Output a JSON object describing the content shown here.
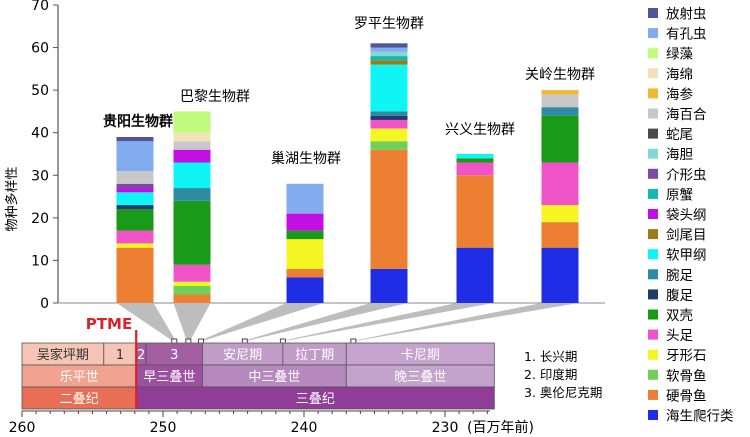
{
  "chart_data": {
    "type": "bar",
    "stacked": true,
    "ylabel": "物种多样性",
    "ylim": [
      0,
      70
    ],
    "yticks": [
      0,
      10,
      20,
      30,
      40,
      50,
      60,
      70
    ],
    "grid": false,
    "legend_position": "right",
    "categories": [
      "贵阳生物群",
      "巴黎生物群",
      "巢湖生物群",
      "罗平生物群",
      "兴义生物群",
      "关岭生物群"
    ],
    "category_ages_ma": [
      249.2,
      248.2,
      247.3,
      244.2,
      241.5,
      236.5
    ],
    "series": [
      {
        "name": "海生爬行类",
        "color": "#1f2de6",
        "values": [
          0,
          0,
          6,
          8,
          13,
          13
        ]
      },
      {
        "name": "硬骨鱼",
        "color": "#ec7f32",
        "values": [
          13,
          2,
          2,
          28,
          17,
          6
        ]
      },
      {
        "name": "软骨鱼",
        "color": "#6fcf57",
        "values": [
          0,
          2,
          0,
          2,
          0,
          0
        ]
      },
      {
        "name": "牙形石",
        "color": "#f5f522",
        "values": [
          1,
          1,
          7,
          3,
          0,
          4
        ]
      },
      {
        "name": "头足",
        "color": "#f052c8",
        "values": [
          3,
          4,
          0,
          2,
          3,
          10
        ]
      },
      {
        "name": "双壳",
        "color": "#199a19",
        "values": [
          5,
          15,
          2,
          0,
          1,
          11
        ]
      },
      {
        "name": "腹足",
        "color": "#233a6c",
        "values": [
          1,
          0,
          0,
          1,
          0,
          0
        ]
      },
      {
        "name": "腕足",
        "color": "#2f8aa4",
        "values": [
          0,
          3,
          0,
          1,
          0,
          2
        ]
      },
      {
        "name": "软甲纲",
        "color": "#0ff5f5",
        "values": [
          3,
          6,
          0,
          11,
          1,
          0
        ]
      },
      {
        "name": "剑尾目",
        "color": "#9b7c17",
        "values": [
          0,
          0,
          0,
          1,
          0,
          0
        ]
      },
      {
        "name": "袋头纲",
        "color": "#c20fe5",
        "values": [
          1,
          3,
          4,
          0,
          0,
          0
        ]
      },
      {
        "name": "原蟹",
        "color": "#15b7b0",
        "values": [
          0,
          0,
          0,
          1,
          0,
          0
        ]
      },
      {
        "name": "介形虫",
        "color": "#7b4da2",
        "values": [
          1,
          0,
          0,
          0,
          0,
          0
        ]
      },
      {
        "name": "海胆",
        "color": "#83d8d2",
        "values": [
          0,
          0,
          0,
          1,
          0,
          0
        ]
      },
      {
        "name": "蛇尾",
        "color": "#4a4a4a",
        "values": [
          0,
          0,
          0,
          0,
          0,
          0
        ]
      },
      {
        "name": "海百合",
        "color": "#c8c8c8",
        "values": [
          3,
          2,
          0,
          0,
          0,
          3
        ]
      },
      {
        "name": "海参",
        "color": "#f2b835",
        "values": [
          0,
          0,
          0,
          0,
          0,
          1
        ]
      },
      {
        "name": "海绵",
        "color": "#f2e2b7",
        "values": [
          0,
          2,
          0,
          0,
          0,
          0
        ]
      },
      {
        "name": "绿藻",
        "color": "#c0fb7c",
        "values": [
          0,
          5,
          0,
          0,
          0,
          0
        ]
      },
      {
        "name": "有孔虫",
        "color": "#81acf0",
        "values": [
          7,
          0,
          7,
          1,
          0,
          0
        ]
      },
      {
        "name": "放射虫",
        "color": "#4f5597",
        "values": [
          1,
          0,
          0,
          1,
          0,
          0
        ]
      }
    ],
    "x_axis": {
      "xlim": [
        260,
        226
      ],
      "ticks": [
        260,
        250,
        240,
        230
      ],
      "unit": "(百万年前)"
    },
    "timescale": {
      "stages": [
        {
          "label": "吴家坪期",
          "from": 260,
          "to": 254.2,
          "color": "#f6c5b5"
        },
        {
          "label": "1",
          "from": 254.2,
          "to": 251.9,
          "color": "#f6c5b5"
        },
        {
          "label": "2",
          "from": 251.9,
          "to": 251.2,
          "color": "#a45fa2"
        },
        {
          "label": "3",
          "from": 251.2,
          "to": 247.2,
          "color": "#a45fa2"
        },
        {
          "label": "安尼期",
          "from": 247.2,
          "to": 241.5,
          "color": "#c19cc7"
        },
        {
          "label": "拉丁期",
          "from": 241.5,
          "to": 237,
          "color": "#c19cc7"
        },
        {
          "label": "卡尼期",
          "from": 237,
          "to": 226.5,
          "color": "#c6a2ce"
        }
      ],
      "epochs": [
        {
          "label": "乐平世",
          "from": 260,
          "to": 251.9,
          "color": "#f1a290"
        },
        {
          "label": "早三叠世",
          "from": 251.9,
          "to": 247.2,
          "color": "#9b50a0"
        },
        {
          "label": "中三叠世",
          "from": 247.2,
          "to": 237,
          "color": "#b589be"
        },
        {
          "label": "晚三叠世",
          "from": 237,
          "to": 226.5,
          "color": "#c3a2cb"
        }
      ],
      "periods": [
        {
          "label": "二叠纪",
          "from": 260,
          "to": 251.9,
          "color": "#e86f55"
        },
        {
          "label": "三叠纪",
          "from": 251.9,
          "to": 226.5,
          "color": "#8f3d97"
        }
      ],
      "event": {
        "label": "PTME",
        "age": 251.9
      }
    },
    "notes": [
      "1.  长兴期",
      "2.  印度期",
      "3.  奥伦尼克期"
    ]
  }
}
